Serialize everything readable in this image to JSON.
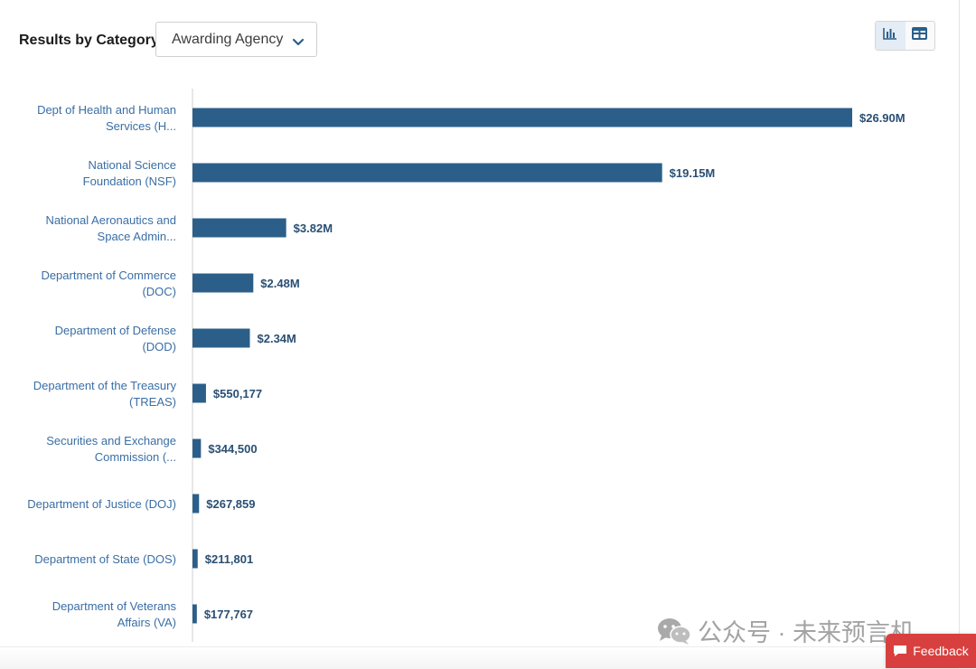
{
  "header": {
    "results_label": "Results by Category",
    "category_select": {
      "selected": "Awarding Agency"
    },
    "view_toggle": {
      "chart_icon": "bar-chart-icon",
      "table_icon": "table-icon",
      "active": "chart"
    }
  },
  "chart_data": {
    "type": "bar",
    "orientation": "horizontal",
    "categories": [
      [
        "Dept of Health and Human",
        "Services (H..."
      ],
      [
        "National Science",
        "Foundation (NSF)"
      ],
      [
        "National Aeronautics and",
        "Space Admin..."
      ],
      [
        "Department of Commerce",
        "(DOC)"
      ],
      [
        "Department of Defense",
        "(DOD)"
      ],
      [
        "Department of the Treasury",
        "(TREAS)"
      ],
      [
        "Securities and Exchange",
        "Commission (..."
      ],
      [
        "Department of Justice (DOJ)"
      ],
      [
        "Department of State (DOS)"
      ],
      [
        "Department of Veterans",
        "Affairs (VA)"
      ]
    ],
    "values": [
      26900000,
      19150000,
      3820000,
      2480000,
      2340000,
      550177,
      344500,
      267859,
      211801,
      177767
    ],
    "value_labels": [
      "$26.90M",
      "$19.15M",
      "$3.82M",
      "$2.48M",
      "$2.34M",
      "$550,177",
      "$344,500",
      "$267,859",
      "$211,801",
      "$177,767"
    ],
    "xlim": [
      0,
      26900000
    ],
    "grid": false,
    "colors": {
      "bar": "#2b5f89",
      "label": "#3a6ea5",
      "value_label": "#2a4f73"
    }
  },
  "watermark": {
    "text": "公众号 · 未来预言机",
    "icon": "wechat-icon"
  },
  "feedback": {
    "label": "Feedback",
    "icon": "comment-icon",
    "color": "#d8403f"
  }
}
